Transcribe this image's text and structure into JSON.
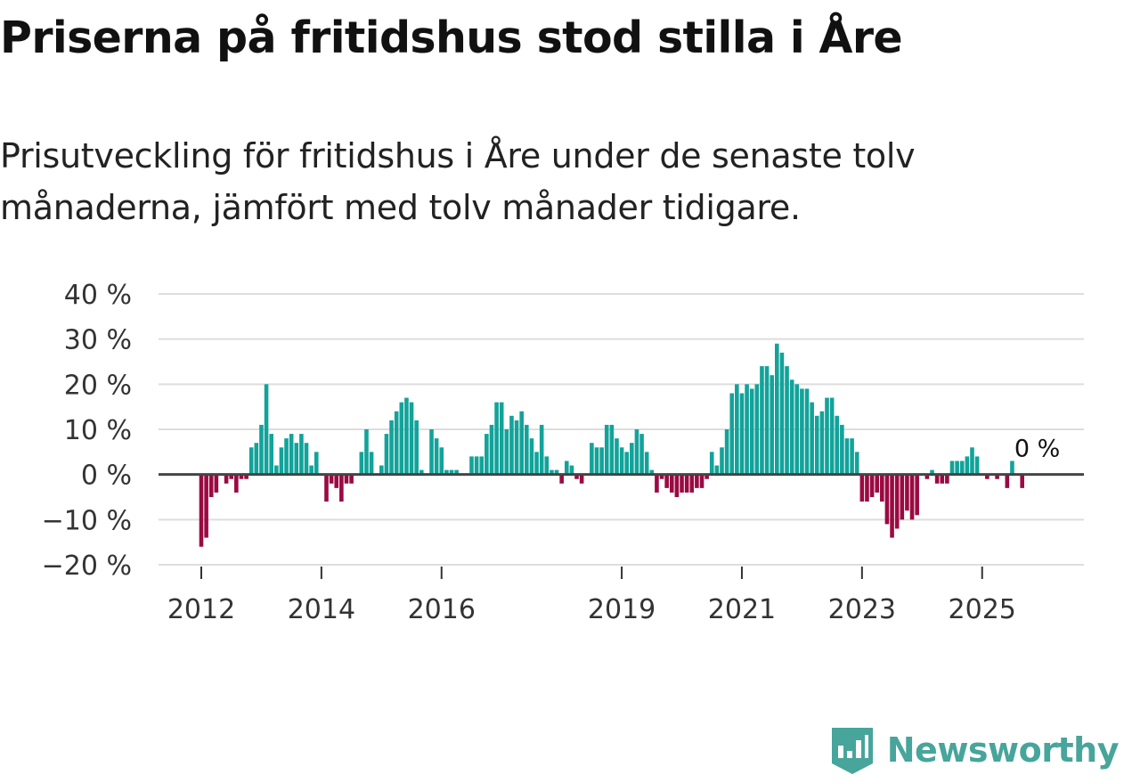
{
  "title": "Priserna på fritidshus stod stilla i Åre",
  "subtitle": "Prisutveckling för fritidshus i Åre under de senaste tolv månaderna, jämfört med tolv månader tidigare.",
  "brand": {
    "name": "Newsworthy",
    "icon": "newsworthy-logo-icon"
  },
  "colors": {
    "positive": "#12a39a",
    "negative": "#9a0a42",
    "gridline": "#dddddd",
    "zero_line": "#444444"
  },
  "chart_data": {
    "type": "bar",
    "title": "",
    "xlabel": "",
    "ylabel": "",
    "ylim": [
      -20,
      40
    ],
    "y_ticks": [
      40,
      30,
      20,
      10,
      0,
      -10,
      -20
    ],
    "y_tick_labels": [
      "40 %",
      "30 %",
      "20 %",
      "10 %",
      "0 %",
      "−10 %",
      "−20 %"
    ],
    "x_ticks": [
      {
        "label": "2012",
        "index": 0
      },
      {
        "label": "2014",
        "index": 24
      },
      {
        "label": "2016",
        "index": 48
      },
      {
        "label": "2019",
        "index": 84
      },
      {
        "label": "2021",
        "index": 108
      },
      {
        "label": "2023",
        "index": 132
      },
      {
        "label": "2025",
        "index": 156
      }
    ],
    "period": {
      "start": "2012-01",
      "end": "2025-12",
      "frequency": "monthly"
    },
    "last_value_label": "0 %",
    "last_value_index": 167,
    "values": [
      -16,
      -14,
      -5,
      -4,
      0,
      -2,
      -1,
      -4,
      -1,
      -1,
      6,
      7,
      11,
      20,
      9,
      2,
      6,
      8,
      9,
      7,
      9,
      7,
      2,
      5,
      0,
      -6,
      -2,
      -3,
      -6,
      -2,
      -2,
      0,
      5,
      10,
      5,
      0,
      2,
      9,
      12,
      14,
      16,
      17,
      16,
      12,
      1,
      0,
      10,
      8,
      6,
      1,
      1,
      1,
      0,
      0,
      4,
      4,
      4,
      9,
      11,
      16,
      16,
      10,
      13,
      12,
      14,
      11,
      8,
      5,
      11,
      4,
      1,
      1,
      -2,
      3,
      2,
      -1,
      -2,
      0,
      7,
      6,
      6,
      11,
      11,
      8,
      6,
      5,
      7,
      10,
      9,
      5,
      1,
      -4,
      -1,
      -3,
      -4,
      -5,
      -4,
      -4,
      -4,
      -3,
      -3,
      -1,
      5,
      2,
      6,
      10,
      18,
      20,
      18,
      20,
      19,
      20,
      24,
      24,
      22,
      29,
      27,
      24,
      21,
      20,
      19,
      19,
      16,
      13,
      14,
      17,
      17,
      13,
      11,
      8,
      8,
      5,
      -6,
      -6,
      -5,
      -4,
      -6,
      -11,
      -14,
      -12,
      -10,
      -8,
      -10,
      -9,
      0,
      -1,
      1,
      -2,
      -2,
      -2,
      3,
      3,
      3,
      4,
      6,
      4,
      0,
      -1,
      0,
      -1,
      0,
      -3,
      3,
      0,
      -3,
      0,
      0,
      0
    ]
  }
}
